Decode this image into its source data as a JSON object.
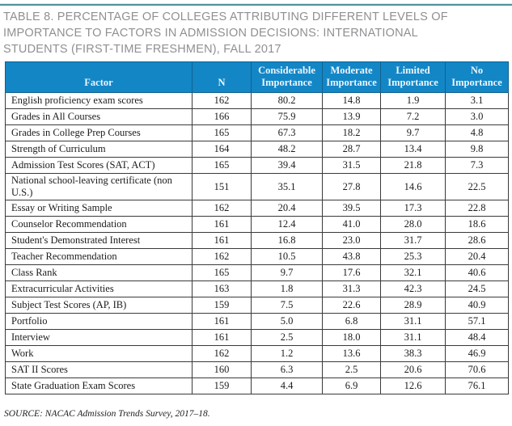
{
  "title": "TABLE 8. PERCENTAGE OF COLLEGES ATTRIBUTING DIFFERENT LEVELS OF IMPORTANCE TO FACTORS IN ADMISSION DECISIONS: INTERNATIONAL STUDENTS (FIRST-TIME FRESHMEN), FALL 2017",
  "source": "SOURCE: NACAC Admission Trends Survey, 2017–18.",
  "colors": {
    "header_bg": "#1386c6",
    "header_text": "#ecf5fb",
    "top_rule_teal": "#4f939a",
    "title_gray": "#8f9093",
    "cell_border": "#3a3a3a"
  },
  "table": {
    "headers": [
      "Factor",
      "N",
      "Considerable Importance",
      "Moderate Importance",
      "Limited Importance",
      "No Importance"
    ],
    "rows": [
      {
        "factor": "English proficiency exam scores",
        "n": "162",
        "considerable": "80.2",
        "moderate": "14.8",
        "limited": "1.9",
        "none": "3.1"
      },
      {
        "factor": "Grades in All Courses",
        "n": "166",
        "considerable": "75.9",
        "moderate": "13.9",
        "limited": "7.2",
        "none": "3.0"
      },
      {
        "factor": "Grades in College Prep Courses",
        "n": "165",
        "considerable": "67.3",
        "moderate": "18.2",
        "limited": "9.7",
        "none": "4.8"
      },
      {
        "factor": "Strength of Curriculum",
        "n": "164",
        "considerable": "48.2",
        "moderate": "28.7",
        "limited": "13.4",
        "none": "9.8"
      },
      {
        "factor": "Admission Test Scores (SAT, ACT)",
        "n": "165",
        "considerable": "39.4",
        "moderate": "31.5",
        "limited": "21.8",
        "none": "7.3"
      },
      {
        "factor": "National school-leaving certificate (non U.S.)",
        "n": "151",
        "considerable": "35.1",
        "moderate": "27.8",
        "limited": "14.6",
        "none": "22.5"
      },
      {
        "factor": "Essay or Writing Sample",
        "n": "162",
        "considerable": "20.4",
        "moderate": "39.5",
        "limited": "17.3",
        "none": "22.8"
      },
      {
        "factor": "Counselor Recommendation",
        "n": "161",
        "considerable": "12.4",
        "moderate": "41.0",
        "limited": "28.0",
        "none": "18.6"
      },
      {
        "factor": "Student's Demonstrated Interest",
        "n": "161",
        "considerable": "16.8",
        "moderate": "23.0",
        "limited": "31.7",
        "none": "28.6"
      },
      {
        "factor": "Teacher Recommendation",
        "n": "162",
        "considerable": "10.5",
        "moderate": "43.8",
        "limited": "25.3",
        "none": "20.4"
      },
      {
        "factor": "Class Rank",
        "n": "165",
        "considerable": "9.7",
        "moderate": "17.6",
        "limited": "32.1",
        "none": "40.6"
      },
      {
        "factor": "Extracurricular Activities",
        "n": "163",
        "considerable": "1.8",
        "moderate": "31.3",
        "limited": "42.3",
        "none": "24.5"
      },
      {
        "factor": "Subject Test Scores (AP, IB)",
        "n": "159",
        "considerable": "7.5",
        "moderate": "22.6",
        "limited": "28.9",
        "none": "40.9"
      },
      {
        "factor": "Portfolio",
        "n": "161",
        "considerable": "5.0",
        "moderate": "6.8",
        "limited": "31.1",
        "none": "57.1"
      },
      {
        "factor": "Interview",
        "n": "161",
        "considerable": "2.5",
        "moderate": "18.0",
        "limited": "31.1",
        "none": "48.4"
      },
      {
        "factor": "Work",
        "n": "162",
        "considerable": "1.2",
        "moderate": "13.6",
        "limited": "38.3",
        "none": "46.9"
      },
      {
        "factor": "SAT II Scores",
        "n": "160",
        "considerable": "6.3",
        "moderate": "2.5",
        "limited": "20.6",
        "none": "70.6"
      },
      {
        "factor": "State Graduation Exam Scores",
        "n": "159",
        "considerable": "4.4",
        "moderate": "6.9",
        "limited": "12.6",
        "none": "76.1"
      }
    ]
  },
  "chart_data": {
    "type": "table",
    "title": "TABLE 8. PERCENTAGE OF COLLEGES ATTRIBUTING DIFFERENT LEVELS OF IMPORTANCE TO FACTORS IN ADMISSION DECISIONS: INTERNATIONAL STUDENTS (FIRST-TIME FRESHMEN), FALL 2017",
    "columns": [
      "Factor",
      "N",
      "Considerable Importance",
      "Moderate Importance",
      "Limited Importance",
      "No Importance"
    ]
  }
}
